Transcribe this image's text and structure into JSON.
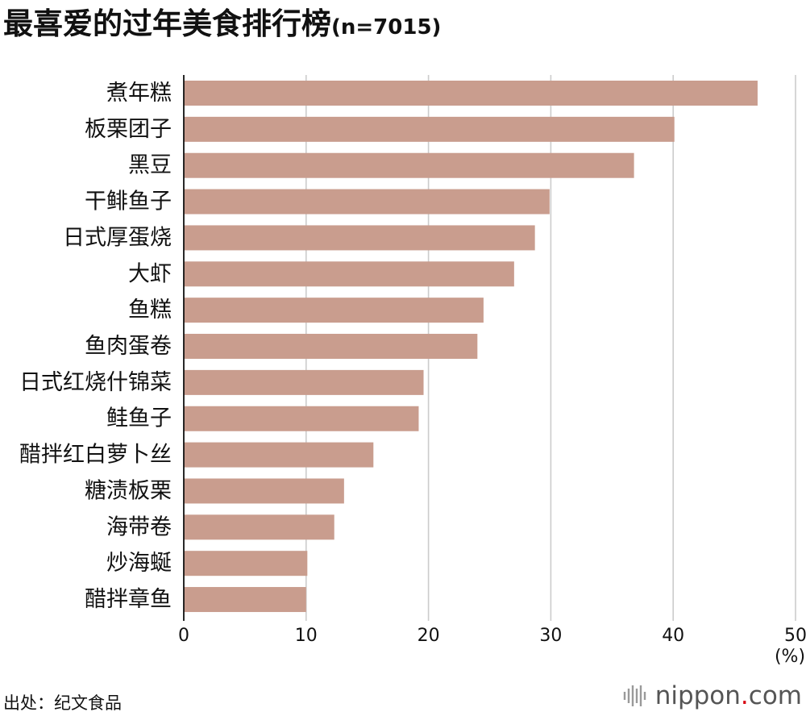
{
  "source": "出处：纪文食品",
  "logo": {
    "word": "nippon",
    "dot": ".",
    "suffix": "com",
    "dot_color": "#d7000f",
    "icon": "soundwave-icon"
  },
  "chart_data": {
    "type": "bar",
    "orientation": "horizontal",
    "title": "最喜爱的过年美食排行榜",
    "subtitle": "(n=7015)",
    "categories": [
      "煮年糕",
      "板栗团子",
      "黑豆",
      "干鲱鱼子",
      "日式厚蛋烧",
      "大虾",
      "鱼糕",
      "鱼肉蛋卷",
      "日式红烧什锦菜",
      "鲑鱼子",
      "醋拌红白萝卜丝",
      "糖渍板栗",
      "海带卷",
      "炒海蜒",
      "醋拌章鱼"
    ],
    "values": [
      46.9,
      40.1,
      36.8,
      29.9,
      28.7,
      27.0,
      24.5,
      24.0,
      19.6,
      19.2,
      15.5,
      13.1,
      12.3,
      10.1,
      10.0
    ],
    "xlim": [
      0,
      50
    ],
    "xticks": [
      0,
      10,
      20,
      30,
      40,
      50
    ],
    "unit_label": "(%)",
    "grid": true,
    "bar_color": "#c99d8e",
    "grid_color": "#cccccc"
  }
}
